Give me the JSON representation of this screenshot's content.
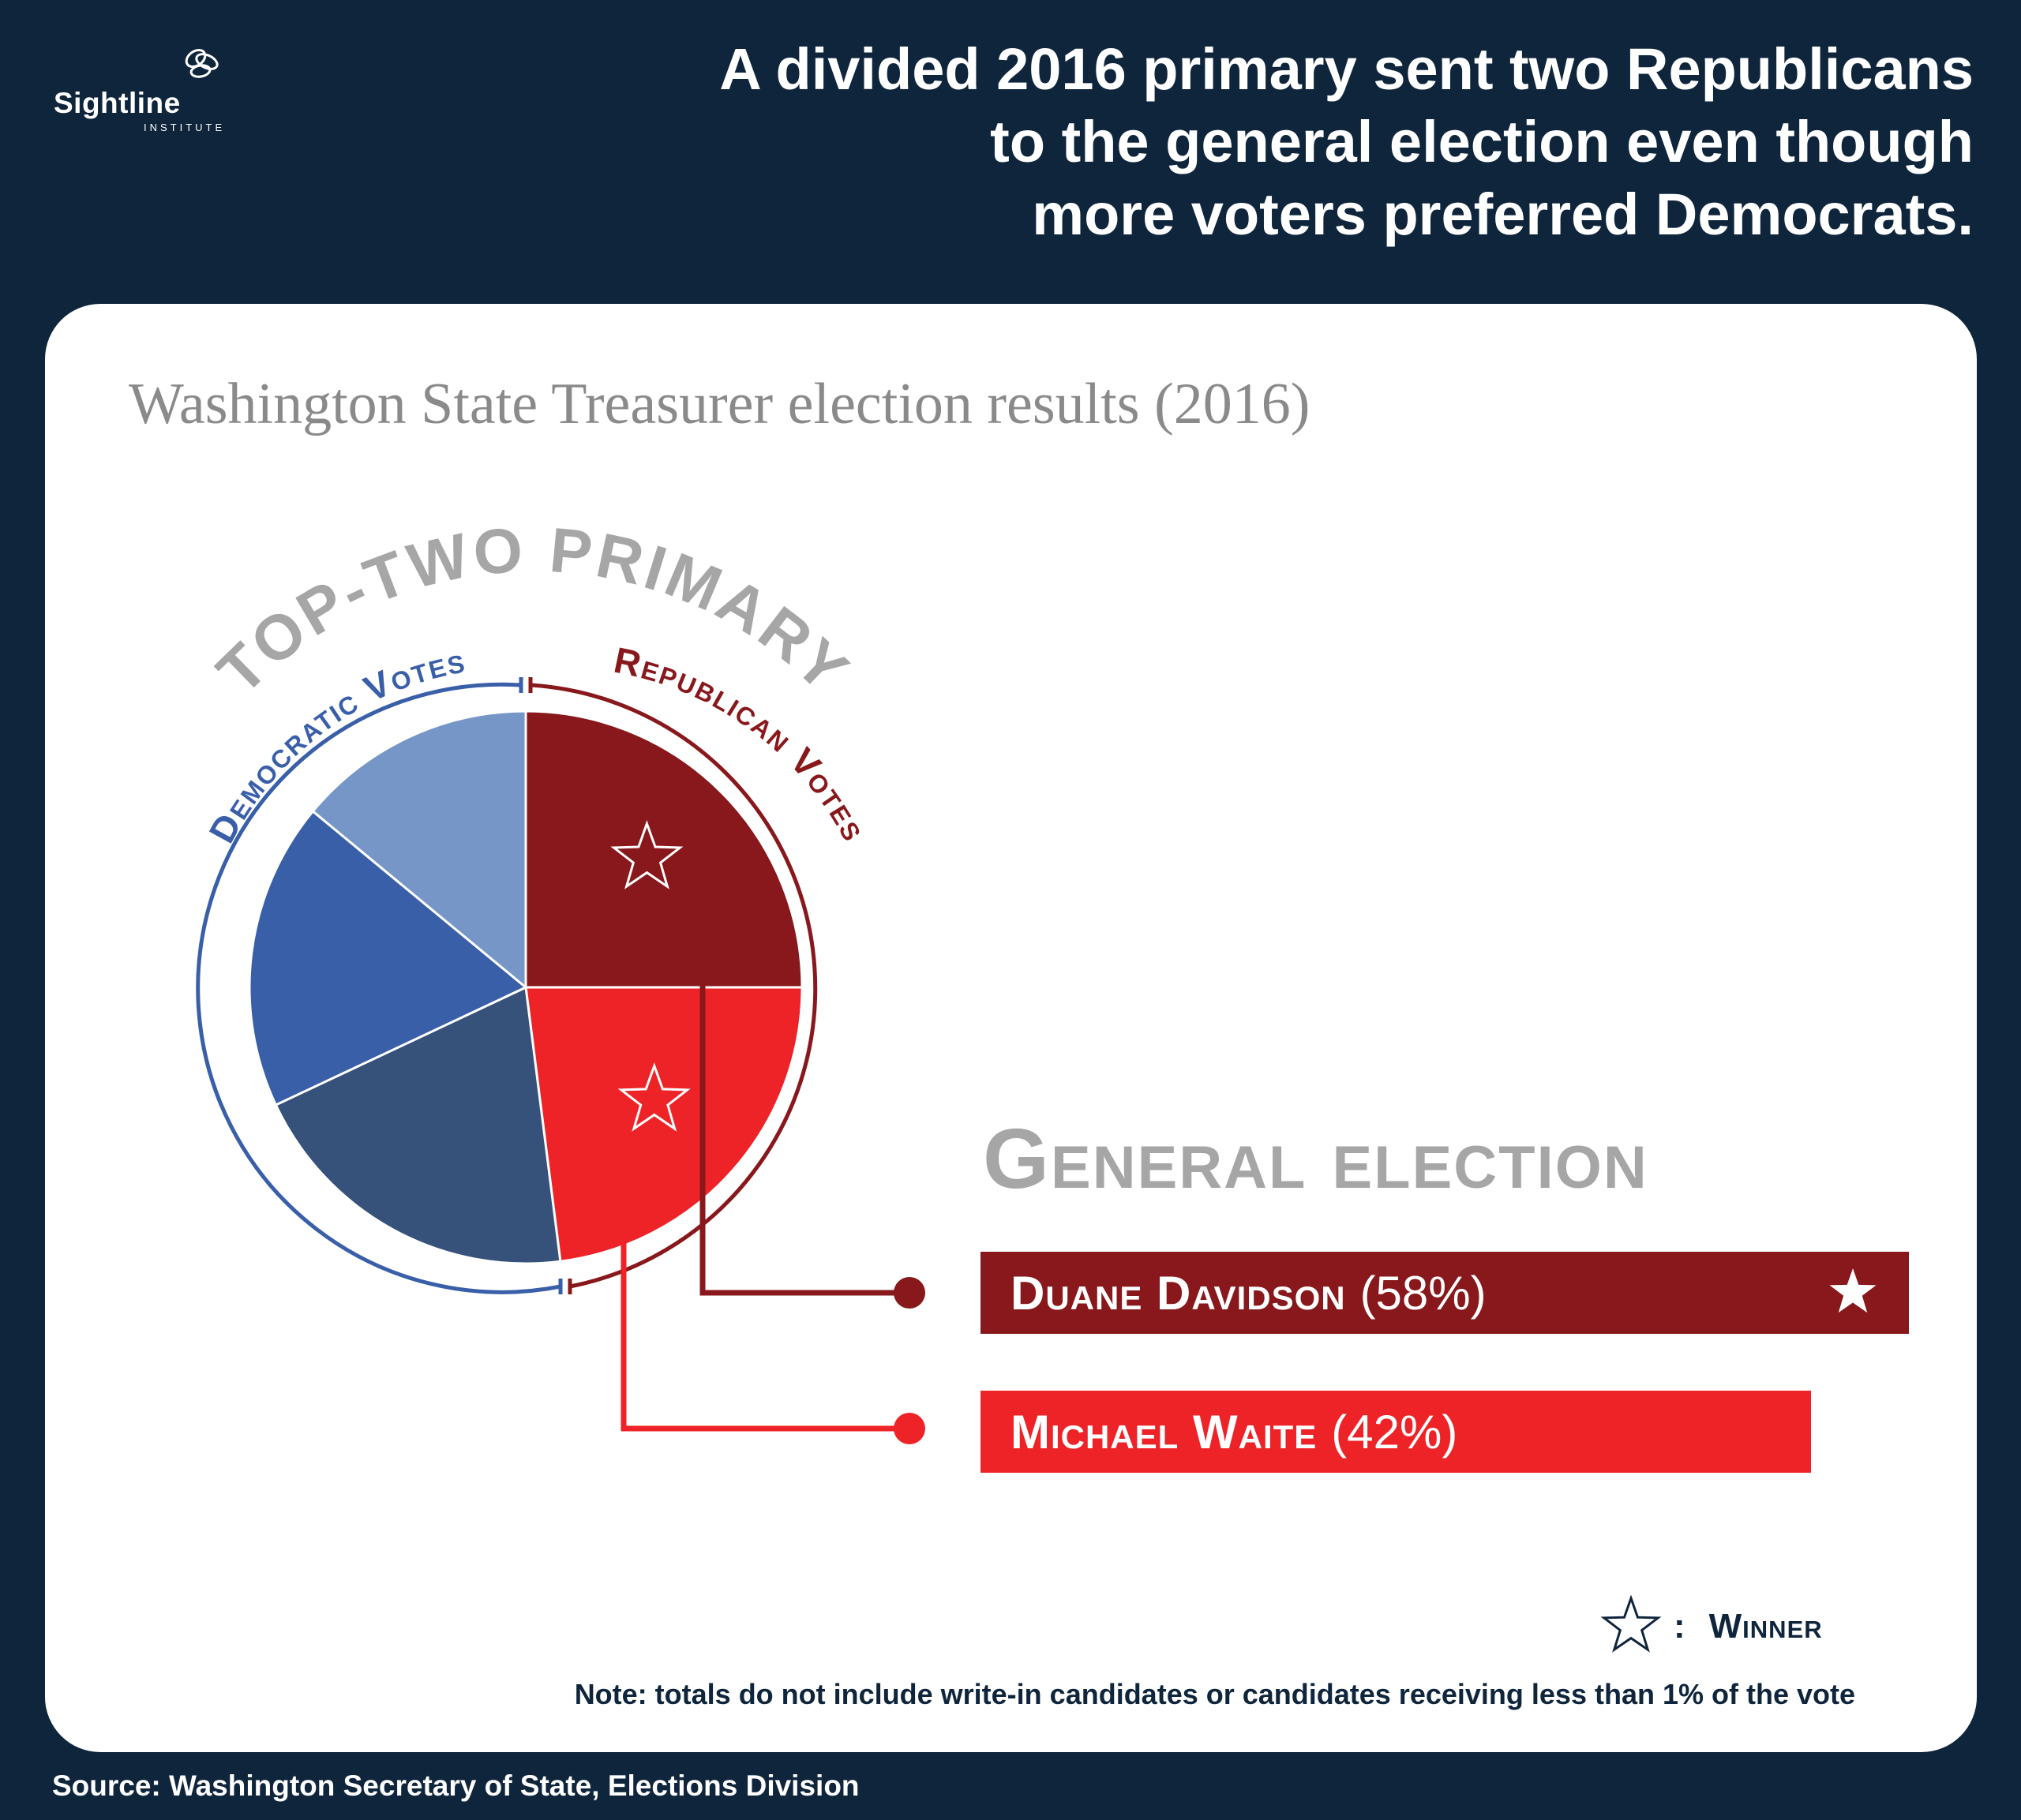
{
  "brand": {
    "name": "Sightline",
    "sub": "INSTITUTE"
  },
  "headline": {
    "line1": "A divided 2016 primary sent two Republicans",
    "line2": "to the general election even though",
    "line3": "more voters preferred Democrats."
  },
  "chart_title": "Washington State Treasurer election results (2016)",
  "chart_data": [
    {
      "type": "pie",
      "title": "TOP-TWO PRIMARY",
      "groups": [
        {
          "name": "Democratic Votes",
          "color": "#3a5fa9",
          "share": 0.52
        },
        {
          "name": "Republican Votes",
          "color": "#88181b",
          "share": 0.48
        }
      ],
      "slices": [
        {
          "party": "Republican",
          "value": 25.0,
          "color": "#88181b",
          "winner": true
        },
        {
          "party": "Republican",
          "value": 23.0,
          "color": "#ee2328",
          "winner": true
        },
        {
          "party": "Democratic",
          "value": 20.0,
          "color": "#36527a",
          "winner": false
        },
        {
          "party": "Democratic",
          "value": 18.0,
          "color": "#3a5fa9",
          "winner": false
        },
        {
          "party": "Democratic",
          "value": 14.0,
          "color": "#7696c7",
          "winner": false
        }
      ]
    },
    {
      "type": "bar",
      "title": "General election",
      "categories": [
        "Duane Davidson",
        "Michael Waite"
      ],
      "values": [
        58,
        42
      ],
      "value_labels": [
        "(58%)",
        "(42%)"
      ],
      "colors": [
        "#88181b",
        "#ee2328"
      ],
      "winner": "Duane Davidson"
    }
  ],
  "legend": {
    "colon": ":",
    "label": "Winner"
  },
  "note": "Note: totals do not include write-in candidates or candidates receiving less than 1% of the vote",
  "source": "Source: Washington Secretary of State, Elections Division"
}
